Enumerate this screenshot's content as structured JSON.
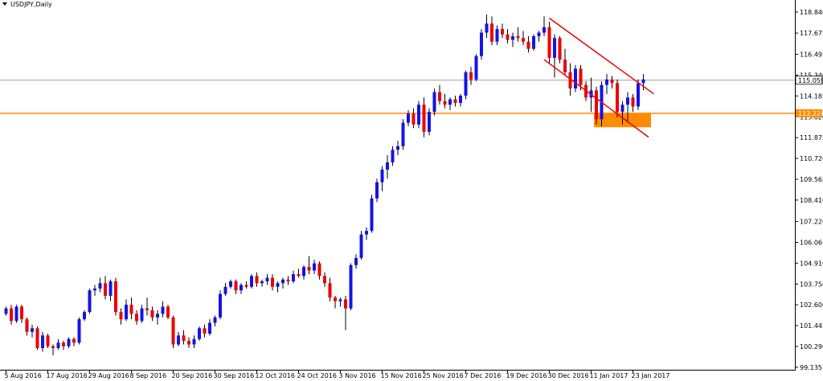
{
  "symbol": {
    "menu_icon": "triangle-down-icon",
    "label": "USDJPY,Daily"
  },
  "colors": {
    "bull": "#1414e6",
    "bear": "#ee0000",
    "wick": "#000000",
    "support": "#ff8c00",
    "channel": "#ee0000",
    "price_line": "#a0a0a0"
  },
  "price_tags": {
    "current": "115.059",
    "support": "113.224"
  },
  "chart_data": {
    "type": "candlestick",
    "title": "USDJPY,Daily",
    "ylim": [
      99.135,
      119.23
    ],
    "y_ticks": [
      "118.840",
      "117.675",
      "116.495",
      "115.340",
      "114.185",
      "113.020",
      "111.875",
      "110.720",
      "109.565",
      "108.410",
      "107.220",
      "106.065",
      "104.910",
      "103.750",
      "102.600",
      "101.445",
      "100.290",
      "99.135"
    ],
    "x_ticks": [
      "5 Aug 2016",
      "17 Aug 2016",
      "29 Aug 2016",
      "8 Sep 2016",
      "20 Sep 2016",
      "30 Sep 2016",
      "12 Oct 2016",
      "24 Oct 2016",
      "3 Nov 2016",
      "15 Nov 2016",
      "25 Nov 2016",
      "7 Dec 2016",
      "19 Dec 2016",
      "30 Dec 2016",
      "11 Jan 2017",
      "23 Jan 2017"
    ],
    "x_tick_index": [
      0,
      8,
      16,
      24,
      32,
      40,
      48,
      56,
      64,
      72,
      80,
      88,
      96,
      104,
      112,
      120
    ],
    "last_price": 115.059,
    "support_level": 113.224,
    "support_zone": {
      "from_index": 113,
      "to_index": 123,
      "low": 112.45,
      "high": 113.25
    },
    "channel": {
      "upper": [
        {
          "i": 104,
          "price": 118.5
        },
        {
          "i": 124,
          "price": 114.3
        }
      ],
      "lower": [
        {
          "i": 103,
          "price": 116.2
        },
        {
          "i": 123,
          "price": 111.9
        }
      ]
    },
    "candles": [
      [
        102.1,
        102.5,
        102.0,
        102.4
      ],
      [
        102.4,
        102.6,
        101.5,
        101.7
      ],
      [
        101.7,
        102.6,
        101.6,
        102.5
      ],
      [
        102.5,
        102.6,
        101.6,
        101.8
      ],
      [
        101.8,
        101.9,
        100.9,
        101.1
      ],
      [
        101.1,
        101.5,
        100.8,
        101.3
      ],
      [
        101.3,
        101.4,
        100.1,
        100.2
      ],
      [
        100.2,
        101.1,
        100.0,
        100.9
      ],
      [
        100.9,
        101.0,
        100.2,
        100.3
      ],
      [
        100.3,
        100.4,
        99.8,
        100.2
      ],
      [
        100.2,
        100.7,
        100.1,
        100.5
      ],
      [
        100.5,
        100.6,
        100.1,
        100.3
      ],
      [
        100.3,
        100.8,
        100.2,
        100.7
      ],
      [
        100.7,
        100.8,
        100.3,
        100.5
      ],
      [
        100.5,
        101.9,
        100.4,
        101.8
      ],
      [
        101.8,
        102.3,
        101.7,
        102.2
      ],
      [
        102.2,
        103.5,
        102.1,
        103.4
      ],
      [
        103.4,
        103.7,
        103.1,
        103.5
      ],
      [
        103.5,
        104.1,
        103.3,
        103.8
      ],
      [
        103.8,
        104.2,
        102.9,
        103.1
      ],
      [
        103.1,
        104.0,
        102.8,
        103.9
      ],
      [
        103.9,
        104.1,
        102.0,
        102.2
      ],
      [
        102.2,
        102.4,
        101.5,
        101.8
      ],
      [
        101.8,
        102.9,
        101.7,
        102.6
      ],
      [
        102.6,
        103.0,
        101.8,
        102.1
      ],
      [
        102.1,
        102.3,
        101.5,
        101.7
      ],
      [
        101.7,
        102.6,
        101.6,
        102.4
      ],
      [
        102.4,
        103.0,
        102.0,
        102.3
      ],
      [
        102.3,
        102.5,
        101.7,
        101.9
      ],
      [
        101.9,
        102.3,
        101.5,
        102.1
      ],
      [
        102.1,
        102.8,
        101.9,
        102.5
      ],
      [
        102.5,
        102.6,
        101.8,
        101.9
      ],
      [
        101.9,
        102.0,
        100.2,
        100.4
      ],
      [
        100.4,
        101.1,
        100.3,
        100.9
      ],
      [
        100.9,
        101.2,
        100.4,
        100.6
      ],
      [
        100.6,
        100.8,
        100.2,
        100.4
      ],
      [
        100.4,
        100.9,
        100.2,
        100.7
      ],
      [
        100.7,
        101.4,
        100.6,
        101.3
      ],
      [
        101.3,
        101.5,
        100.8,
        101.0
      ],
      [
        101.0,
        101.8,
        100.9,
        101.6
      ],
      [
        101.6,
        102.0,
        101.4,
        101.9
      ],
      [
        101.9,
        103.4,
        101.8,
        103.2
      ],
      [
        103.2,
        103.8,
        103.1,
        103.6
      ],
      [
        103.6,
        104.0,
        103.5,
        103.9
      ],
      [
        103.9,
        104.0,
        103.2,
        103.4
      ],
      [
        103.4,
        103.8,
        103.2,
        103.7
      ],
      [
        103.7,
        103.9,
        103.5,
        103.6
      ],
      [
        103.6,
        104.3,
        103.5,
        104.2
      ],
      [
        104.2,
        104.4,
        103.6,
        103.8
      ],
      [
        103.8,
        104.0,
        103.6,
        103.9
      ],
      [
        103.9,
        104.3,
        103.7,
        104.1
      ],
      [
        104.1,
        104.3,
        103.4,
        103.6
      ],
      [
        103.6,
        103.9,
        103.3,
        103.8
      ],
      [
        103.8,
        104.1,
        103.5,
        104.0
      ],
      [
        104.0,
        104.2,
        103.7,
        103.9
      ],
      [
        103.9,
        104.5,
        103.8,
        104.3
      ],
      [
        104.3,
        104.6,
        104.1,
        104.2
      ],
      [
        104.2,
        104.8,
        104.0,
        104.7
      ],
      [
        104.7,
        105.3,
        104.3,
        104.5
      ],
      [
        104.5,
        105.1,
        104.3,
        104.9
      ],
      [
        104.9,
        105.0,
        104.0,
        104.2
      ],
      [
        104.2,
        104.4,
        103.6,
        103.8
      ],
      [
        103.8,
        104.1,
        102.8,
        103.0
      ],
      [
        103.0,
        103.1,
        102.4,
        102.8
      ],
      [
        102.8,
        103.0,
        102.5,
        102.9
      ],
      [
        102.9,
        103.1,
        101.2,
        102.4
      ],
      [
        102.4,
        104.9,
        102.3,
        104.8
      ],
      [
        104.8,
        105.4,
        104.6,
        105.2
      ],
      [
        105.2,
        106.7,
        105.1,
        106.5
      ],
      [
        106.5,
        106.9,
        106.2,
        106.7
      ],
      [
        106.7,
        108.7,
        106.6,
        108.5
      ],
      [
        108.5,
        109.6,
        108.3,
        109.4
      ],
      [
        109.4,
        110.3,
        108.9,
        110.1
      ],
      [
        110.1,
        110.9,
        109.6,
        110.5
      ],
      [
        110.5,
        111.4,
        110.3,
        111.2
      ],
      [
        111.2,
        111.7,
        110.9,
        111.4
      ],
      [
        111.4,
        112.9,
        111.2,
        112.7
      ],
      [
        112.7,
        113.4,
        112.5,
        113.2
      ],
      [
        113.2,
        113.5,
        112.4,
        112.6
      ],
      [
        112.6,
        113.9,
        112.4,
        113.7
      ],
      [
        113.7,
        114.1,
        111.9,
        112.2
      ],
      [
        112.2,
        113.5,
        112.0,
        113.3
      ],
      [
        113.3,
        114.6,
        113.1,
        114.4
      ],
      [
        114.4,
        114.8,
        113.7,
        113.9
      ],
      [
        113.9,
        114.3,
        113.5,
        113.7
      ],
      [
        113.7,
        114.1,
        113.4,
        114.0
      ],
      [
        114.0,
        114.2,
        113.6,
        113.8
      ],
      [
        113.8,
        114.3,
        113.6,
        114.2
      ],
      [
        114.2,
        115.6,
        114.0,
        115.5
      ],
      [
        115.5,
        115.8,
        114.8,
        115.1
      ],
      [
        115.1,
        116.5,
        115.0,
        116.4
      ],
      [
        116.4,
        117.9,
        116.2,
        117.7
      ],
      [
        117.7,
        118.7,
        117.4,
        118.2
      ],
      [
        118.2,
        118.6,
        117.0,
        117.2
      ],
      [
        117.2,
        118.1,
        117.0,
        117.9
      ],
      [
        117.9,
        118.2,
        117.4,
        117.6
      ],
      [
        117.6,
        117.9,
        117.1,
        117.3
      ],
      [
        117.3,
        117.7,
        116.9,
        117.5
      ],
      [
        117.5,
        118.0,
        117.2,
        117.4
      ],
      [
        117.4,
        117.8,
        117.0,
        117.2
      ],
      [
        117.2,
        117.5,
        116.6,
        116.8
      ],
      [
        116.8,
        117.6,
        116.7,
        117.5
      ],
      [
        117.5,
        117.8,
        117.2,
        117.7
      ],
      [
        117.7,
        118.6,
        117.5,
        118.0
      ],
      [
        118.0,
        118.3,
        116.0,
        116.3
      ],
      [
        116.3,
        117.6,
        115.2,
        117.4
      ],
      [
        117.4,
        117.5,
        116.0,
        116.2
      ],
      [
        116.2,
        116.8,
        115.3,
        115.5
      ],
      [
        115.5,
        116.0,
        114.2,
        114.6
      ],
      [
        114.6,
        115.9,
        114.4,
        115.7
      ],
      [
        115.7,
        115.9,
        114.5,
        114.8
      ],
      [
        114.8,
        115.0,
        113.9,
        114.1
      ],
      [
        114.1,
        115.2,
        113.3,
        114.5
      ],
      [
        114.5,
        114.7,
        112.6,
        112.9
      ],
      [
        112.9,
        115.0,
        112.5,
        114.8
      ],
      [
        114.8,
        115.4,
        114.3,
        115.1
      ],
      [
        115.1,
        115.3,
        114.6,
        114.9
      ],
      [
        114.9,
        115.1,
        113.0,
        113.3
      ],
      [
        113.3,
        113.9,
        112.6,
        113.7
      ],
      [
        113.7,
        114.4,
        112.7,
        114.1
      ],
      [
        114.1,
        114.3,
        113.3,
        113.6
      ],
      [
        113.6,
        115.1,
        113.4,
        114.9
      ],
      [
        114.9,
        115.4,
        114.5,
        115.1
      ]
    ]
  }
}
